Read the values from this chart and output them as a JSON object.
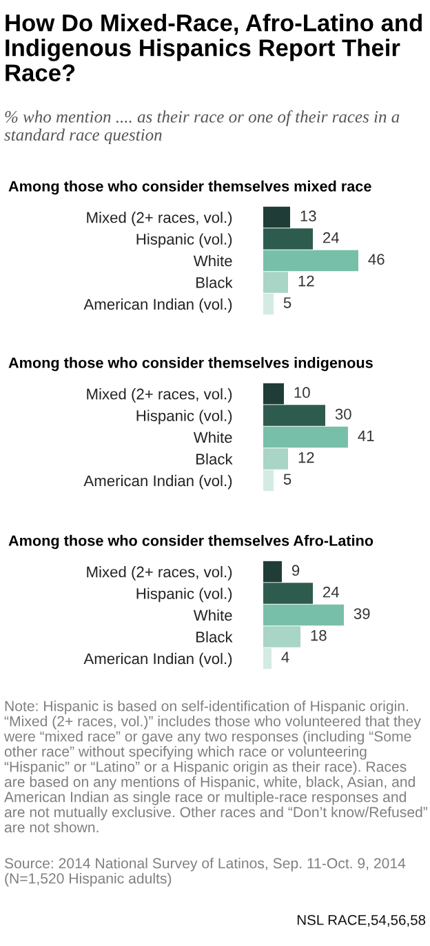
{
  "chart_data": [
    {
      "type": "bar",
      "orientation": "horizontal",
      "title": "Among those who consider themselves mixed race",
      "annotations": [
        "How Do Mixed-Race, Afro-Latino and Indigenous Hispanics Report Their Race?",
        "% who mention .... as their race or one of their races in a standard race question"
      ],
      "categories": [
        "Mixed (2+ races, vol.)",
        "Hispanic (vol.)",
        "White",
        "Black",
        "American Indian (vol.)"
      ],
      "values": [
        13,
        24,
        46,
        12,
        5
      ],
      "colors": [
        "#1f3d36",
        "#2d5c4e",
        "#78bfa9",
        "#a8d5c6",
        "#d3ebe3"
      ],
      "tick_labels": "y",
      "data_labels": true
    },
    {
      "type": "bar",
      "orientation": "horizontal",
      "title": "Among those who consider themselves indigenous",
      "categories": [
        "Mixed (2+ races, vol.)",
        "Hispanic (vol.)",
        "White",
        "Black",
        "American Indian (vol.)"
      ],
      "values": [
        10,
        30,
        41,
        12,
        5
      ],
      "colors": [
        "#1f3d36",
        "#2d5c4e",
        "#78bfa9",
        "#a8d5c6",
        "#d3ebe3"
      ],
      "tick_labels": "y",
      "data_labels": true
    },
    {
      "type": "bar",
      "orientation": "horizontal",
      "title": "Among those who consider themselves Afro-Latino",
      "annotations": [
        "Note: Hispanic is based on self-identification of Hispanic origin. “Mixed (2+ races, vol.)” includes those who volunteered that they were “mixed race” or gave any two responses (including “Some other race” without specifying which race or volunteering “Hispanic” or “Latino” or a Hispanic origin as their race). Races are based on any mentions of Hispanic, white, black, Asian, and American Indian as single race or multiple-race responses and are not mutually exclusive. Other races and “Don’t know/Refused” are not shown.",
        "Source: 2014 National Survey of Latinos, Sep. 11-Oct. 9, 2014 (N=1,520 Hispanic adults)",
        "NSL RACE,54,56,58"
      ],
      "categories": [
        "Mixed (2+ races, vol.)",
        "Hispanic (vol.)",
        "White",
        "Black",
        "American Indian (vol.)"
      ],
      "values": [
        9,
        24,
        39,
        18,
        4
      ],
      "colors": [
        "#1f3d36",
        "#2d5c4e",
        "#78bfa9",
        "#a8d5c6",
        "#d3ebe3"
      ],
      "tick_labels": "y",
      "data_labels": true
    }
  ]
}
